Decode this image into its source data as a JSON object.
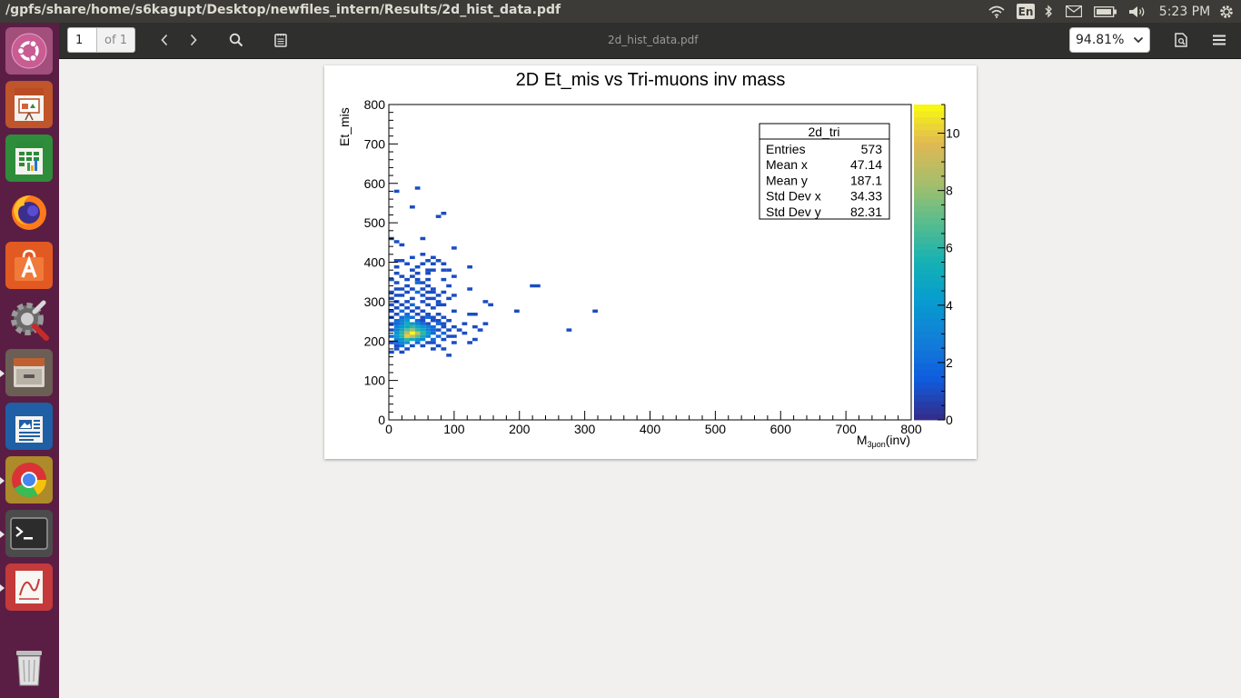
{
  "window": {
    "title": "/gpfs/share/home/s6kagupt/Desktop/newfiles_intern/Results/2d_hist_data.pdf"
  },
  "top_panel": {
    "language": "En",
    "clock": "5:23 PM"
  },
  "toolbar": {
    "page_value": "1",
    "page_of": "of 1",
    "document_title": "2d_hist_data.pdf",
    "zoom_value": "94.81%"
  },
  "launcher": {
    "apps": [
      "ubuntu-dash",
      "libreoffice-impress",
      "libreoffice-calc",
      "firefox",
      "ubuntu-software",
      "system-settings",
      "files",
      "libreoffice-writer",
      "google-chrome",
      "terminal",
      "document-viewer",
      "trash"
    ]
  },
  "colors": {
    "panel": "#3c3b37",
    "launcher": "#5a1e44",
    "toolbar": "#2f2f2e"
  },
  "chart_data": {
    "type": "heatmap",
    "title": "2D Et_mis vs Tri-muons inv mass",
    "xlabel_main": "M",
    "xlabel_sub": "3μon",
    "xlabel_tail": "(inv)",
    "ylabel": "Et_mis",
    "xlim": [
      0,
      800
    ],
    "ylim": [
      0,
      800
    ],
    "x_ticks": [
      "0",
      "100",
      "200",
      "300",
      "400",
      "500",
      "600",
      "700",
      "800"
    ],
    "y_ticks": [
      "0",
      "100",
      "200",
      "300",
      "400",
      "500",
      "600",
      "700",
      "800"
    ],
    "z_range": [
      0,
      11
    ],
    "z_ticks": [
      "0",
      "2",
      "4",
      "6",
      "8",
      "10"
    ],
    "bin_width": 8,
    "stats": {
      "name": "2d_tri",
      "rows": [
        {
          "label": "Entries",
          "value": "573"
        },
        {
          "label": "Mean x",
          "value": "47.14"
        },
        {
          "label": "Mean y",
          "value": "187.1"
        },
        {
          "label": "Std Dev x",
          "value": "34.33"
        },
        {
          "label": "Std Dev y",
          "value": "82.31"
        }
      ]
    },
    "cells": [
      [
        8,
        576,
        1
      ],
      [
        40,
        584,
        1
      ],
      [
        32,
        536,
        1
      ],
      [
        72,
        512,
        1
      ],
      [
        80,
        520,
        1
      ],
      [
        48,
        456,
        1
      ],
      [
        0,
        456,
        1
      ],
      [
        8,
        448,
        1
      ],
      [
        16,
        440,
        1
      ],
      [
        96,
        432,
        1
      ],
      [
        48,
        416,
        1
      ],
      [
        32,
        408,
        1
      ],
      [
        64,
        408,
        1
      ],
      [
        8,
        400,
        1
      ],
      [
        16,
        400,
        1
      ],
      [
        56,
        400,
        1
      ],
      [
        72,
        400,
        1
      ],
      [
        24,
        392,
        1
      ],
      [
        48,
        392,
        1
      ],
      [
        64,
        392,
        1
      ],
      [
        80,
        392,
        1
      ],
      [
        8,
        384,
        1
      ],
      [
        40,
        384,
        1
      ],
      [
        120,
        384,
        1
      ],
      [
        32,
        376,
        1
      ],
      [
        56,
        376,
        1
      ],
      [
        64,
        376,
        1
      ],
      [
        80,
        376,
        1
      ],
      [
        88,
        376,
        1
      ],
      [
        8,
        368,
        1
      ],
      [
        40,
        368,
        1
      ],
      [
        56,
        368,
        1
      ],
      [
        16,
        360,
        1
      ],
      [
        32,
        360,
        1
      ],
      [
        96,
        360,
        1
      ],
      [
        0,
        352,
        1
      ],
      [
        24,
        352,
        1
      ],
      [
        40,
        352,
        1
      ],
      [
        56,
        352,
        1
      ],
      [
        80,
        352,
        1
      ],
      [
        8,
        344,
        1
      ],
      [
        40,
        344,
        2
      ],
      [
        48,
        344,
        1
      ],
      [
        24,
        336,
        1
      ],
      [
        56,
        336,
        1
      ],
      [
        88,
        336,
        1
      ],
      [
        216,
        336,
        1
      ],
      [
        224,
        336,
        1
      ],
      [
        8,
        328,
        1
      ],
      [
        16,
        328,
        1
      ],
      [
        32,
        328,
        1
      ],
      [
        48,
        328,
        1
      ],
      [
        64,
        328,
        1
      ],
      [
        120,
        328,
        1
      ],
      [
        0,
        320,
        1
      ],
      [
        24,
        320,
        1
      ],
      [
        40,
        320,
        2
      ],
      [
        56,
        320,
        1
      ],
      [
        64,
        320,
        1
      ],
      [
        80,
        320,
        1
      ],
      [
        8,
        312,
        1
      ],
      [
        16,
        312,
        1
      ],
      [
        48,
        312,
        1
      ],
      [
        72,
        312,
        1
      ],
      [
        96,
        312,
        1
      ],
      [
        0,
        304,
        1
      ],
      [
        32,
        304,
        1
      ],
      [
        56,
        304,
        1
      ],
      [
        64,
        304,
        1
      ],
      [
        88,
        304,
        1
      ],
      [
        8,
        296,
        1
      ],
      [
        24,
        296,
        1
      ],
      [
        48,
        296,
        1
      ],
      [
        72,
        296,
        1
      ],
      [
        144,
        296,
        1
      ],
      [
        0,
        288,
        1
      ],
      [
        16,
        288,
        1
      ],
      [
        32,
        288,
        2
      ],
      [
        56,
        288,
        1
      ],
      [
        72,
        288,
        1
      ],
      [
        80,
        288,
        1
      ],
      [
        152,
        288,
        1
      ],
      [
        8,
        280,
        1
      ],
      [
        24,
        280,
        1
      ],
      [
        40,
        280,
        1
      ],
      [
        64,
        280,
        1
      ],
      [
        0,
        272,
        1
      ],
      [
        16,
        272,
        2
      ],
      [
        32,
        272,
        1
      ],
      [
        48,
        272,
        1
      ],
      [
        96,
        272,
        1
      ],
      [
        192,
        272,
        1
      ],
      [
        312,
        272,
        1
      ],
      [
        8,
        264,
        1
      ],
      [
        24,
        264,
        2
      ],
      [
        40,
        264,
        1
      ],
      [
        56,
        264,
        1
      ],
      [
        72,
        264,
        1
      ],
      [
        120,
        264,
        1
      ],
      [
        128,
        264,
        1
      ],
      [
        0,
        256,
        1
      ],
      [
        16,
        256,
        2
      ],
      [
        24,
        256,
        3
      ],
      [
        32,
        256,
        2
      ],
      [
        48,
        256,
        1
      ],
      [
        56,
        256,
        2
      ],
      [
        64,
        256,
        1
      ],
      [
        80,
        256,
        1
      ],
      [
        8,
        248,
        2
      ],
      [
        16,
        248,
        3
      ],
      [
        24,
        248,
        4
      ],
      [
        40,
        248,
        2
      ],
      [
        48,
        248,
        1
      ],
      [
        64,
        248,
        1
      ],
      [
        72,
        248,
        1
      ],
      [
        88,
        248,
        1
      ],
      [
        0,
        240,
        1
      ],
      [
        8,
        240,
        2
      ],
      [
        16,
        240,
        3
      ],
      [
        24,
        240,
        5
      ],
      [
        32,
        240,
        4
      ],
      [
        40,
        240,
        3
      ],
      [
        48,
        240,
        2
      ],
      [
        56,
        240,
        1
      ],
      [
        72,
        240,
        2
      ],
      [
        80,
        240,
        1
      ],
      [
        112,
        240,
        1
      ],
      [
        144,
        240,
        1
      ],
      [
        8,
        232,
        3
      ],
      [
        16,
        232,
        4
      ],
      [
        24,
        232,
        5
      ],
      [
        32,
        232,
        6
      ],
      [
        40,
        232,
        5
      ],
      [
        48,
        232,
        4
      ],
      [
        56,
        232,
        3
      ],
      [
        64,
        232,
        2
      ],
      [
        80,
        232,
        1
      ],
      [
        96,
        232,
        1
      ],
      [
        128,
        232,
        1
      ],
      [
        0,
        224,
        1
      ],
      [
        8,
        224,
        3
      ],
      [
        16,
        224,
        5
      ],
      [
        24,
        224,
        7
      ],
      [
        32,
        224,
        8
      ],
      [
        40,
        224,
        6
      ],
      [
        48,
        224,
        5
      ],
      [
        56,
        224,
        3
      ],
      [
        64,
        224,
        2
      ],
      [
        72,
        224,
        1
      ],
      [
        88,
        224,
        1
      ],
      [
        104,
        224,
        1
      ],
      [
        136,
        224,
        1
      ],
      [
        272,
        224,
        1
      ],
      [
        8,
        216,
        4
      ],
      [
        16,
        216,
        6
      ],
      [
        24,
        216,
        9
      ],
      [
        32,
        216,
        11
      ],
      [
        40,
        216,
        9
      ],
      [
        48,
        216,
        6
      ],
      [
        56,
        216,
        4
      ],
      [
        64,
        216,
        2
      ],
      [
        80,
        216,
        2
      ],
      [
        112,
        216,
        1
      ],
      [
        0,
        208,
        2
      ],
      [
        8,
        208,
        4
      ],
      [
        16,
        208,
        6
      ],
      [
        24,
        208,
        10
      ],
      [
        32,
        208,
        9
      ],
      [
        40,
        208,
        7
      ],
      [
        48,
        208,
        5
      ],
      [
        56,
        208,
        3
      ],
      [
        72,
        208,
        2
      ],
      [
        88,
        208,
        1
      ],
      [
        96,
        208,
        1
      ],
      [
        8,
        200,
        3
      ],
      [
        16,
        200,
        4
      ],
      [
        24,
        200,
        6
      ],
      [
        32,
        200,
        5
      ],
      [
        40,
        200,
        4
      ],
      [
        48,
        200,
        3
      ],
      [
        64,
        200,
        2
      ],
      [
        80,
        200,
        1
      ],
      [
        128,
        200,
        1
      ],
      [
        0,
        192,
        1
      ],
      [
        8,
        192,
        2
      ],
      [
        16,
        192,
        3
      ],
      [
        24,
        192,
        4
      ],
      [
        40,
        192,
        2
      ],
      [
        56,
        192,
        1
      ],
      [
        64,
        192,
        1
      ],
      [
        96,
        192,
        1
      ],
      [
        120,
        192,
        1
      ],
      [
        8,
        184,
        1
      ],
      [
        16,
        184,
        2
      ],
      [
        32,
        184,
        1
      ],
      [
        48,
        184,
        1
      ],
      [
        72,
        184,
        1
      ],
      [
        8,
        176,
        1
      ],
      [
        24,
        176,
        1
      ],
      [
        64,
        176,
        1
      ],
      [
        80,
        176,
        1
      ],
      [
        0,
        168,
        1
      ],
      [
        16,
        168,
        1
      ],
      [
        88,
        160,
        1
      ]
    ]
  }
}
